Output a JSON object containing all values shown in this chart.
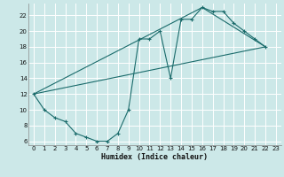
{
  "xlabel": "Humidex (Indice chaleur)",
  "bg_color": "#cce8e8",
  "grid_color": "#ffffff",
  "line_color": "#1a6b6b",
  "xlim": [
    -0.5,
    23.5
  ],
  "ylim": [
    5.5,
    23.5
  ],
  "xticks": [
    0,
    1,
    2,
    3,
    4,
    5,
    6,
    7,
    8,
    9,
    10,
    11,
    12,
    13,
    14,
    15,
    16,
    17,
    18,
    19,
    20,
    21,
    22,
    23
  ],
  "yticks": [
    6,
    8,
    10,
    12,
    14,
    16,
    18,
    20,
    22
  ],
  "curve_x": [
    0,
    1,
    2,
    3,
    4,
    5,
    6,
    7,
    8,
    9,
    10,
    11,
    12,
    13,
    14,
    15,
    16,
    17,
    18,
    19,
    20,
    21,
    22
  ],
  "curve_y": [
    12,
    10,
    9,
    8.5,
    7,
    6.5,
    6,
    6,
    7,
    10,
    19,
    19,
    20,
    14,
    21.5,
    21.5,
    23,
    22.5,
    22.5,
    21,
    20,
    19,
    18
  ],
  "line1_x": [
    0,
    22
  ],
  "line1_y": [
    12,
    18
  ],
  "line2_x": [
    0,
    16,
    22
  ],
  "line2_y": [
    12,
    23,
    18
  ],
  "xlabel_fontsize": 6.0,
  "tick_fontsize": 5.0
}
